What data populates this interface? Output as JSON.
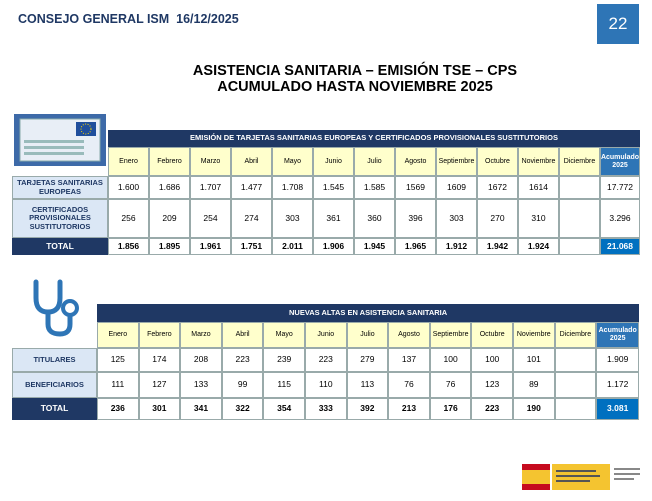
{
  "header": {
    "org": "CONSEJO GENERAL ISM  16/12/2025",
    "page": "22"
  },
  "title": {
    "line1": "ASISTENCIA SANITARIA – EMISIÓN TSE – CPS",
    "line2": "ACUMULADO HASTA NOVIEMBRE 2025"
  },
  "table1": {
    "title": "EMISIÓN DE TARJETAS SANITARIAS EUROPEAS Y CERTIFICADOS PROVISIONALES SUSTITUTORIOS",
    "months": [
      "Enero",
      "Febrero",
      "Marzo",
      "Abril",
      "Mayo",
      "Junio",
      "Julio",
      "Agosto",
      "Septiembre",
      "Octubre",
      "Noviembre",
      "Diciembre"
    ],
    "total_header": "Acumulado 2025",
    "rows": [
      {
        "label": "TARJETAS SANITARIAS EUROPEAS",
        "values": [
          "1.600",
          "1.686",
          "1.707",
          "1.477",
          "1.708",
          "1.545",
          "1.585",
          "1569",
          "1609",
          "1672",
          "1614"
        ],
        "total": "17.772"
      },
      {
        "label": "CERTIFICADOS PROVISIONALES SUSTITUTORIOS",
        "values": [
          "256",
          "209",
          "254",
          "274",
          "303",
          "361",
          "360",
          "396",
          "303",
          "270",
          "310"
        ],
        "total": "3.296"
      },
      {
        "label": "TOTAL",
        "values": [
          "1.856",
          "1.895",
          "1.961",
          "1.751",
          "2.011",
          "1.906",
          "1.945",
          "1.965",
          "1.912",
          "1.942",
          "1.924"
        ],
        "total": "21.068"
      }
    ]
  },
  "table2": {
    "title": "NUEVAS ALTAS EN ASISTENCIA SANITARIA",
    "months": [
      "Enero",
      "Febrero",
      "Marzo",
      "Abril",
      "Mayo",
      "Junio",
      "Julio",
      "Agosto",
      "Septiembre",
      "Octubre",
      "Noviembre",
      "Diciembre"
    ],
    "total_header": "Acumulado 2025",
    "rows": [
      {
        "label": "TITULARES",
        "values": [
          "125",
          "174",
          "208",
          "223",
          "239",
          "223",
          "279",
          "137",
          "100",
          "100",
          "101"
        ],
        "total": "1.909"
      },
      {
        "label": "BENEFICIARIOS",
        "values": [
          "111",
          "127",
          "133",
          "99",
          "115",
          "110",
          "113",
          "76",
          "76",
          "123",
          "89"
        ],
        "total": "1.172"
      },
      {
        "label": "TOTAL",
        "values": [
          "236",
          "301",
          "341",
          "322",
          "354",
          "333",
          "392",
          "213",
          "176",
          "223",
          "190"
        ],
        "total": "3.081"
      }
    ]
  }
}
